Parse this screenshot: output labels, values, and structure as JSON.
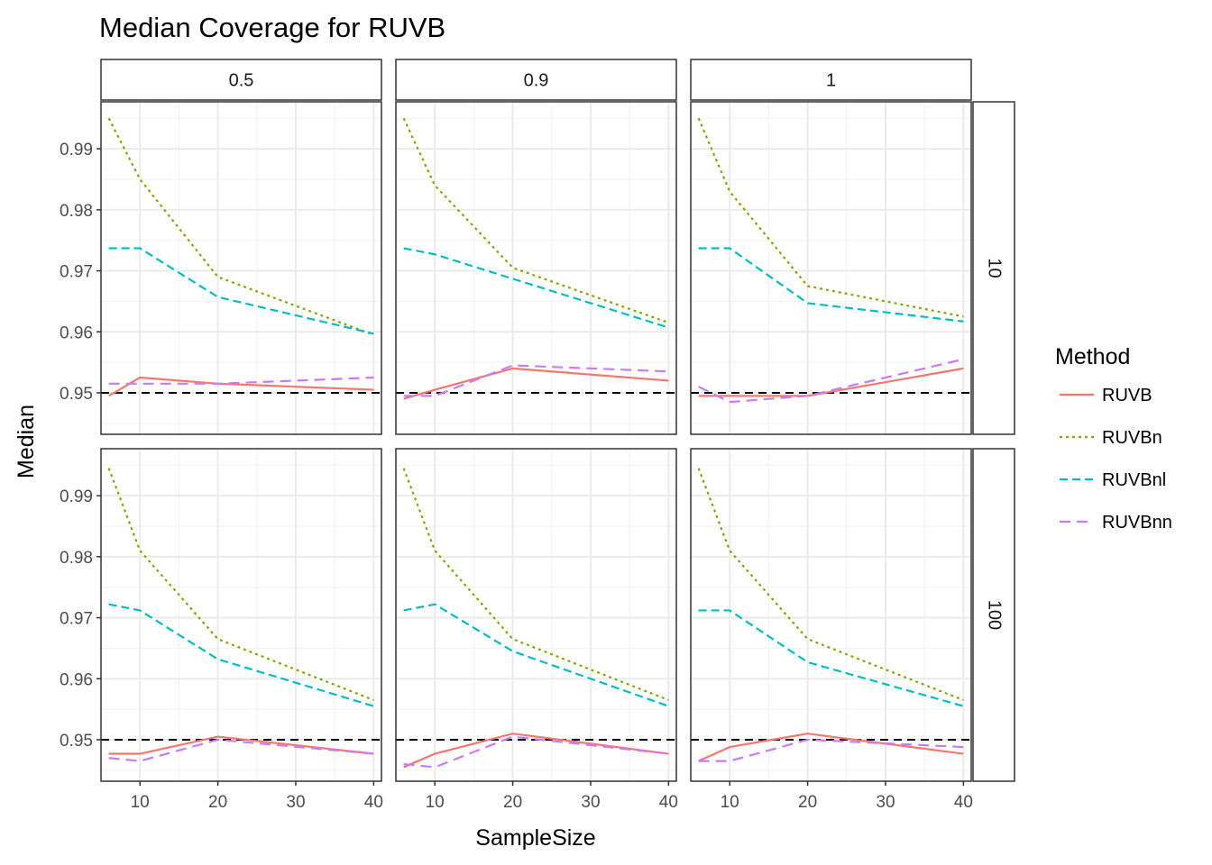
{
  "chart_data": {
    "type": "line",
    "title": "Median Coverage for RUVB",
    "xlabel": "SampleSize",
    "ylabel": "Median",
    "x": [
      6,
      10,
      20,
      40
    ],
    "xticks": [
      10,
      20,
      30,
      40
    ],
    "xlim": [
      5,
      41
    ],
    "yticks": [
      0.95,
      0.96,
      0.97,
      0.98,
      0.99
    ],
    "ylim": [
      0.9432,
      0.9977
    ],
    "reference_line": {
      "y": 0.95,
      "style": "dashed",
      "color": "#000000"
    },
    "grid": true,
    "legend": {
      "title": "Method",
      "position": "right",
      "entries": [
        {
          "name": "RUVB",
          "color": "#F8766D",
          "dash": "solid"
        },
        {
          "name": "RUVBn",
          "color": "#7CAE00",
          "dash": "dotted"
        },
        {
          "name": "RUVBnl",
          "color": "#00BFC4",
          "dash": "dashed"
        },
        {
          "name": "RUVBnn",
          "color": "#C77CFF",
          "dash": "longdash"
        }
      ]
    },
    "facets": {
      "columns": [
        "0.5",
        "0.9",
        "1"
      ],
      "rows": [
        "10",
        "100"
      ]
    },
    "panels": [
      {
        "col": 0,
        "row": 0,
        "series": [
          {
            "name": "RUVB",
            "values": [
              0.9495,
              0.9525,
              0.9515,
              0.9505
            ]
          },
          {
            "name": "RUVBn",
            "values": [
              0.995,
              0.985,
              0.969,
              0.9595
            ]
          },
          {
            "name": "RUVBnl",
            "values": [
              0.9737,
              0.9737,
              0.9657,
              0.9597
            ]
          },
          {
            "name": "RUVBnn",
            "values": [
              0.9515,
              0.9515,
              0.9515,
              0.9525
            ]
          }
        ]
      },
      {
        "col": 1,
        "row": 0,
        "series": [
          {
            "name": "RUVB",
            "values": [
              0.949,
              0.9505,
              0.954,
              0.952
            ]
          },
          {
            "name": "RUVBn",
            "values": [
              0.995,
              0.984,
              0.9705,
              0.9615
            ]
          },
          {
            "name": "RUVBnl",
            "values": [
              0.9737,
              0.9727,
              0.9687,
              0.9607
            ]
          },
          {
            "name": "RUVBnn",
            "values": [
              0.9495,
              0.9495,
              0.9545,
              0.9535
            ]
          }
        ]
      },
      {
        "col": 2,
        "row": 0,
        "series": [
          {
            "name": "RUVB",
            "values": [
              0.9495,
              0.9495,
              0.9495,
              0.954
            ]
          },
          {
            "name": "RUVBn",
            "values": [
              0.995,
              0.983,
              0.9675,
              0.9625
            ]
          },
          {
            "name": "RUVBnl",
            "values": [
              0.9737,
              0.9737,
              0.9647,
              0.9617
            ]
          },
          {
            "name": "RUVBnn",
            "values": [
              0.951,
              0.9485,
              0.9495,
              0.9555
            ]
          }
        ]
      },
      {
        "col": 0,
        "row": 1,
        "series": [
          {
            "name": "RUVB",
            "values": [
              0.9477,
              0.9477,
              0.9505,
              0.9477
            ]
          },
          {
            "name": "RUVBn",
            "values": [
              0.9945,
              0.981,
              0.9665,
              0.9565
            ]
          },
          {
            "name": "RUVBnl",
            "values": [
              0.9722,
              0.9712,
              0.9632,
              0.9555
            ]
          },
          {
            "name": "RUVBnn",
            "values": [
              0.947,
              0.9465,
              0.95,
              0.9477
            ]
          }
        ]
      },
      {
        "col": 1,
        "row": 1,
        "series": [
          {
            "name": "RUVB",
            "values": [
              0.9455,
              0.9477,
              0.951,
              0.9477
            ]
          },
          {
            "name": "RUVBn",
            "values": [
              0.9945,
              0.981,
              0.9665,
              0.9565
            ]
          },
          {
            "name": "RUVBnl",
            "values": [
              0.9712,
              0.9722,
              0.9645,
              0.9555
            ]
          },
          {
            "name": "RUVBnn",
            "values": [
              0.946,
              0.9455,
              0.9505,
              0.9477
            ]
          }
        ]
      },
      {
        "col": 2,
        "row": 1,
        "series": [
          {
            "name": "RUVB",
            "values": [
              0.9465,
              0.9488,
              0.951,
              0.9477
            ]
          },
          {
            "name": "RUVBn",
            "values": [
              0.9945,
              0.981,
              0.9665,
              0.9565
            ]
          },
          {
            "name": "RUVBnl",
            "values": [
              0.9712,
              0.9712,
              0.9627,
              0.9555
            ]
          },
          {
            "name": "RUVBnn",
            "values": [
              0.9465,
              0.9465,
              0.95,
              0.9488
            ]
          }
        ]
      }
    ]
  }
}
